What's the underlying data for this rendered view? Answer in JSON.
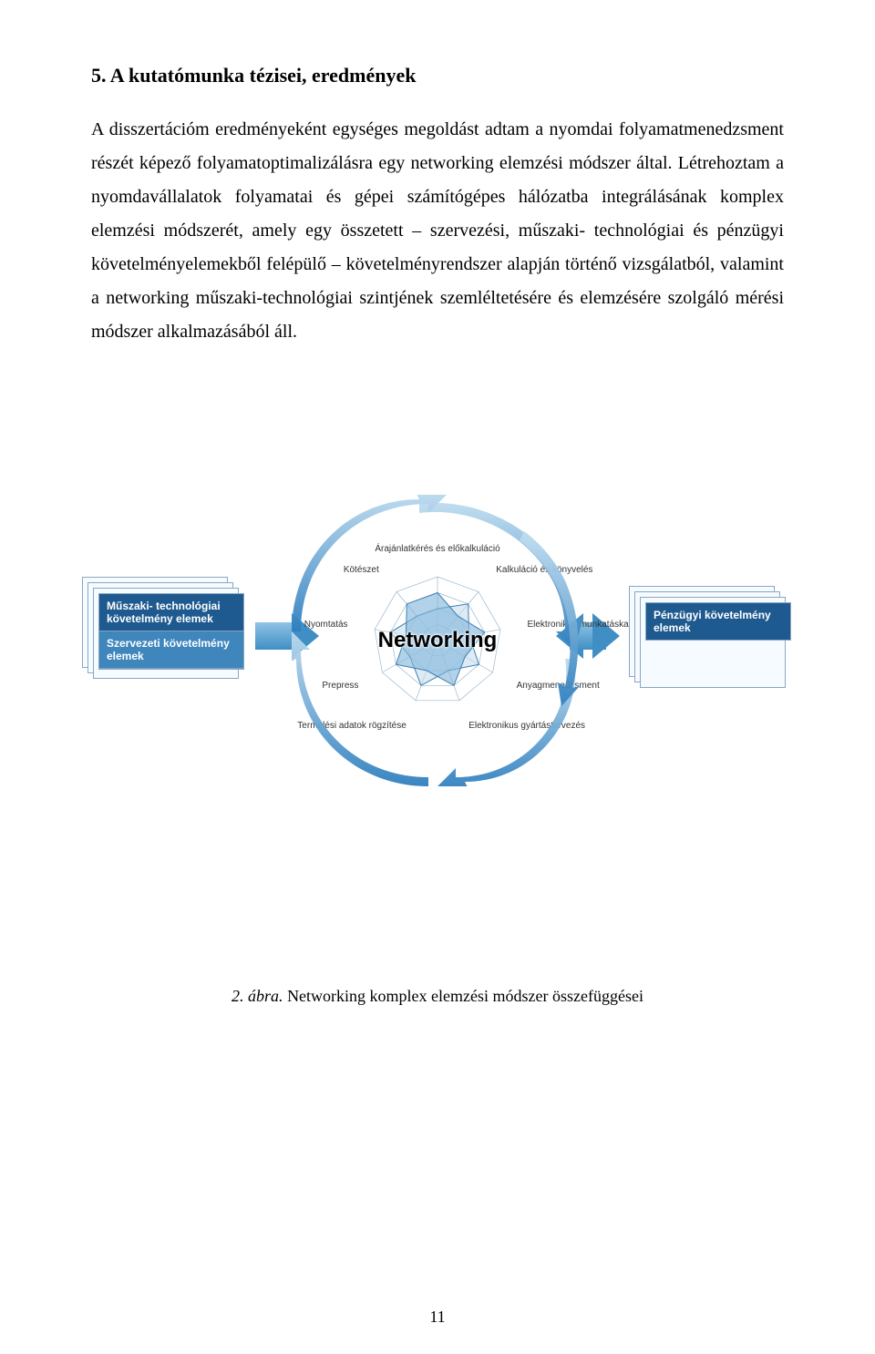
{
  "heading": "5. A kutatómunka tézisei, eredmények",
  "paragraph": "A disszertációm eredményeként egységes megoldást adtam a nyomdai folyamatmenedzsment részét képező folyamatoptimalizálásra egy networking elemzési módszer által. Létrehoztam a nyomdavállalatok folyamatai és gépei számítógépes hálózatba integrálásának komplex elemzési módszerét, amely egy összetett – szervezési, műszaki- technológiai és pénzügyi követelményelemekből felépülő – követelményrendszer alapján történő vizsgálatból, valamint a networking műszaki-technológiai szintjének szemléltetésére és elemzésére szolgáló mérési módszer alkalmazásából áll.",
  "left_card": {
    "row1": "Műszaki- technológiai követelmény elemek",
    "row2": "Szervezeti követelmény elemek"
  },
  "right_card": {
    "row1": "Pénzügyi követelmény elemek"
  },
  "center_title": "Networking",
  "radar": {
    "labels": [
      "Árajánlatkérés és előkalkuláció",
      "Kalkuláció és könyvelés",
      "Elektronikus munkatáska",
      "Anyagmenedzsment",
      "Elektronikus gyártástervezés",
      "Termelési adatok rögzítése",
      "Prepress",
      "Nyomtatás",
      "Kötészet"
    ],
    "series_a": [
      3,
      2,
      3,
      2,
      3,
      2,
      3,
      2,
      3
    ],
    "series_b": [
      2,
      3,
      2,
      3,
      2,
      3,
      2,
      3,
      2
    ],
    "max": 4,
    "grid_color": "#9bb8cf",
    "fill_a": "#7fb4da",
    "fill_b": "#c7deef",
    "line_color": "#3f7fb0"
  },
  "swirl_color_outer": "#bedcef",
  "swirl_color_inner": "#2f7fbf",
  "fig_caption_num": "2. ábra.",
  "fig_caption_text": " Networking komplex elemzési módszer összefüggései",
  "page_number": "11"
}
